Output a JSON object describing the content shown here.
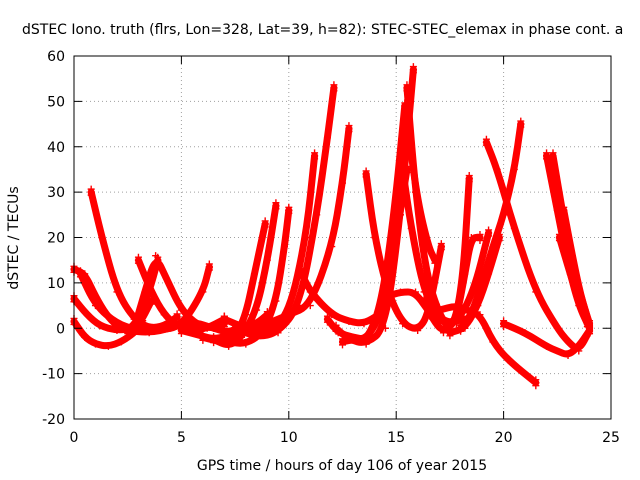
{
  "chart_data": {
    "type": "scatter",
    "title": "dSTEC Iono. truth (flrs, Lon=328, Lat=39, h=82): STEC-STEC_elemax in phase cont. a",
    "xlabel": "GPS time / hours of day 106 of year 2015",
    "ylabel": "dSTEC  / TECUs",
    "xlim": [
      0,
      25
    ],
    "ylim": [
      -20,
      60
    ],
    "xticks": [
      0,
      5,
      10,
      15,
      20,
      25
    ],
    "yticks": [
      -20,
      -10,
      0,
      10,
      20,
      30,
      40,
      50,
      60
    ],
    "grid": true,
    "marker": "plus",
    "color": "#ff0000",
    "series": [
      {
        "x": [
          0.0,
          0.5,
          1.0,
          1.5,
          2.0,
          2.5,
          3.0,
          3.6
        ],
        "y": [
          13,
          12,
          7,
          3,
          0.5,
          -0.5,
          0.5,
          6
        ]
      },
      {
        "x": [
          0.0,
          0.6,
          1.2,
          2.0,
          2.8,
          3.5,
          3.9
        ],
        "y": [
          6.5,
          3,
          0.5,
          -0.5,
          0,
          8,
          15
        ]
      },
      {
        "x": [
          0.0,
          0.5,
          1.0,
          1.6,
          2.2,
          2.8,
          3.2
        ],
        "y": [
          1.5,
          -2,
          -3.5,
          -4,
          -3,
          -1,
          1
        ]
      },
      {
        "x": [
          0.8,
          1.3,
          2.0,
          2.8,
          3.5,
          4.2,
          4.8
        ],
        "y": [
          30,
          20,
          8,
          2,
          0,
          0.5,
          2.5
        ]
      },
      {
        "x": [
          0.3,
          1.0,
          2.0,
          3.0,
          4.0,
          5.0,
          6.0,
          6.3
        ],
        "y": [
          12,
          5,
          1,
          -0.5,
          -0.5,
          0.5,
          8,
          13.5
        ]
      },
      {
        "x": [
          3.0,
          3.6,
          4.2,
          4.8,
          5.5,
          6.2,
          7.0
        ],
        "y": [
          15,
          8,
          3,
          0.5,
          -0.5,
          0,
          2
        ]
      },
      {
        "x": [
          2.8,
          3.3,
          3.8,
          4.3,
          5.0,
          5.8,
          6.5,
          7.0
        ],
        "y": [
          0,
          8,
          16,
          11,
          4,
          0.5,
          0,
          1
        ]
      },
      {
        "x": [
          2.5,
          3.5,
          4.5,
          5.5,
          6.5,
          7.2,
          7.8
        ],
        "y": [
          -0.5,
          -1,
          0,
          1.5,
          0,
          -1,
          0.5
        ]
      },
      {
        "x": [
          5.0,
          5.8,
          6.6,
          7.5,
          8.5,
          9.0
        ],
        "y": [
          -0.5,
          -1.5,
          -2.5,
          -1,
          1,
          3
        ]
      },
      {
        "x": [
          6.0,
          6.8,
          7.5,
          8.0,
          8.4,
          8.9
        ],
        "y": [
          -2,
          -3,
          -2,
          3,
          12,
          23
        ]
      },
      {
        "x": [
          6.5,
          7.2,
          7.8,
          8.5,
          9.0,
          9.4
        ],
        "y": [
          -2.5,
          -4,
          -2,
          4,
          15,
          27
        ]
      },
      {
        "x": [
          7.2,
          8.0,
          8.8,
          9.4,
          9.8,
          10.0
        ],
        "y": [
          -3,
          -3.5,
          -1,
          6,
          18,
          26
        ]
      },
      {
        "x": [
          7.0,
          8.0,
          9.0,
          10.0,
          10.8,
          11.2
        ],
        "y": [
          2,
          0,
          -1,
          3,
          20,
          38
        ]
      },
      {
        "x": [
          7.5,
          8.5,
          9.5,
          10.5,
          11.3,
          11.8,
          12.1
        ],
        "y": [
          0,
          -2,
          -1,
          5,
          25,
          42,
          53
        ]
      },
      {
        "x": [
          8.0,
          9.0,
          10.0,
          11.0,
          12.0,
          12.5,
          12.8
        ],
        "y": [
          0,
          1,
          3,
          5,
          18,
          32,
          44
        ]
      },
      {
        "x": [
          10.5,
          11.0,
          12.0,
          12.8,
          13.5,
          14.2
        ],
        "y": [
          13,
          8,
          3,
          1.5,
          1,
          3
        ]
      },
      {
        "x": [
          11.8,
          12.3,
          13.0,
          13.6,
          14.3,
          15.0,
          15.5
        ],
        "y": [
          2,
          -1,
          -2,
          -2.5,
          3,
          20,
          35
        ]
      },
      {
        "x": [
          12.2,
          12.8,
          13.6,
          14.5,
          15.2,
          15.8
        ],
        "y": [
          0,
          -2.5,
          -3.5,
          0,
          25,
          57
        ]
      },
      {
        "x": [
          12.5,
          13.0,
          13.6,
          14.3,
          14.9,
          15.4
        ],
        "y": [
          -3,
          -2.5,
          -3,
          5,
          25,
          49
        ]
      },
      {
        "x": [
          13.6,
          14.0,
          14.6,
          15.3,
          16.0,
          16.5,
          17.1
        ],
        "y": [
          34,
          20,
          8,
          1,
          -0.5,
          3,
          18
        ]
      },
      {
        "x": [
          14.6,
          15.2,
          15.9,
          16.6,
          17.3,
          18.1
        ],
        "y": [
          7,
          8,
          8,
          3,
          1,
          2
        ]
      },
      {
        "x": [
          15.3,
          15.7,
          16.3,
          17.0,
          17.8,
          18.6,
          19.3
        ],
        "y": [
          35,
          22,
          8,
          2,
          1,
          8,
          21
        ]
      },
      {
        "x": [
          15.5,
          15.9,
          16.4,
          17.0,
          17.6,
          18.1,
          18.4
        ],
        "y": [
          53,
          30,
          12,
          3,
          -1,
          10,
          33
        ]
      },
      {
        "x": [
          15.6,
          16.0,
          16.5,
          16.8
        ],
        "y": [
          42,
          28,
          18,
          15
        ]
      },
      {
        "x": [
          16.3,
          16.7,
          17.2,
          17.8,
          18.2,
          18.5,
          18.9
        ],
        "y": [
          6,
          2,
          -1,
          2,
          12,
          20,
          20
        ]
      },
      {
        "x": [
          17.0,
          17.8,
          18.3,
          18.9,
          19.5,
          20.2,
          21.5
        ],
        "y": [
          4,
          5,
          4,
          3,
          -3,
          -7,
          -12
        ]
      },
      {
        "x": [
          17.5,
          18.2,
          18.8,
          19.3,
          19.8
        ],
        "y": [
          -1,
          0,
          5,
          12,
          20
        ]
      },
      {
        "x": [
          18.0,
          18.5,
          19.0,
          19.5,
          20.0,
          20.5,
          20.8
        ],
        "y": [
          0,
          3,
          10,
          18,
          25,
          35,
          45
        ]
      },
      {
        "x": [
          19.2,
          19.7,
          20.5,
          21.5,
          22.5,
          23.0,
          23.5,
          24.0
        ],
        "y": [
          41,
          35,
          22,
          8,
          0,
          -3,
          -5,
          -0.5
        ]
      },
      {
        "x": [
          20.0,
          21.0,
          22.0,
          22.5,
          23.0,
          23.5,
          24.0
        ],
        "y": [
          1,
          -1,
          -4,
          -5,
          -6,
          -4,
          -0.5
        ]
      },
      {
        "x": [
          22.0,
          22.5,
          23.0,
          23.5,
          24.0
        ],
        "y": [
          38,
          26,
          14,
          5,
          0
        ]
      },
      {
        "x": [
          22.3,
          22.8,
          23.3,
          23.8,
          24.0
        ],
        "y": [
          38,
          24,
          12,
          4,
          0.5
        ]
      },
      {
        "x": [
          22.8,
          23.2,
          23.6,
          24.0
        ],
        "y": [
          26,
          16,
          7,
          1
        ]
      },
      {
        "x": [
          22.6,
          23.1,
          23.5,
          23.9
        ],
        "y": [
          20,
          12,
          6,
          1
        ]
      }
    ]
  }
}
